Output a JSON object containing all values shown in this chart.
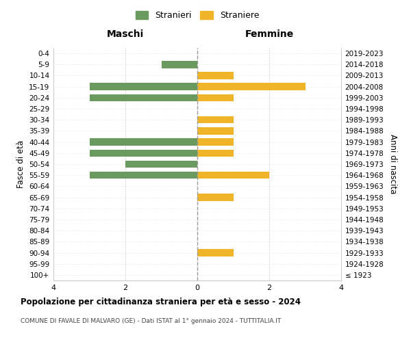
{
  "age_groups": [
    "100+",
    "95-99",
    "90-94",
    "85-89",
    "80-84",
    "75-79",
    "70-74",
    "65-69",
    "60-64",
    "55-59",
    "50-54",
    "45-49",
    "40-44",
    "35-39",
    "30-34",
    "25-29",
    "20-24",
    "15-19",
    "10-14",
    "5-9",
    "0-4"
  ],
  "birth_years": [
    "≤ 1923",
    "1924-1928",
    "1929-1933",
    "1934-1938",
    "1939-1943",
    "1944-1948",
    "1949-1953",
    "1954-1958",
    "1959-1963",
    "1964-1968",
    "1969-1973",
    "1974-1978",
    "1979-1983",
    "1984-1988",
    "1989-1993",
    "1994-1998",
    "1999-2003",
    "2004-2008",
    "2009-2013",
    "2014-2018",
    "2019-2023"
  ],
  "maschi": [
    0,
    0,
    0,
    0,
    0,
    0,
    0,
    0,
    0,
    3,
    2,
    3,
    3,
    0,
    0,
    0,
    3,
    3,
    0,
    1,
    0
  ],
  "femmine": [
    0,
    0,
    1,
    0,
    0,
    0,
    0,
    1,
    0,
    2,
    0,
    1,
    1,
    1,
    1,
    0,
    1,
    3,
    1,
    0,
    0
  ],
  "color_maschi": "#6a9a5e",
  "color_femmine": "#f0b429",
  "title": "Popolazione per cittadinanza straniera per età e sesso - 2024",
  "subtitle": "COMUNE DI FAVALE DI MALVARO (GE) - Dati ISTAT al 1° gennaio 2024 - TUTTITALIA.IT",
  "xlabel_left": "Maschi",
  "xlabel_right": "Femmine",
  "ylabel_left": "Fasce di età",
  "ylabel_right": "Anni di nascita",
  "legend_maschi": "Stranieri",
  "legend_femmine": "Straniere",
  "xlim": 4,
  "background_color": "#ffffff",
  "grid_color": "#cccccc",
  "grid_color_y": "#dddddd"
}
